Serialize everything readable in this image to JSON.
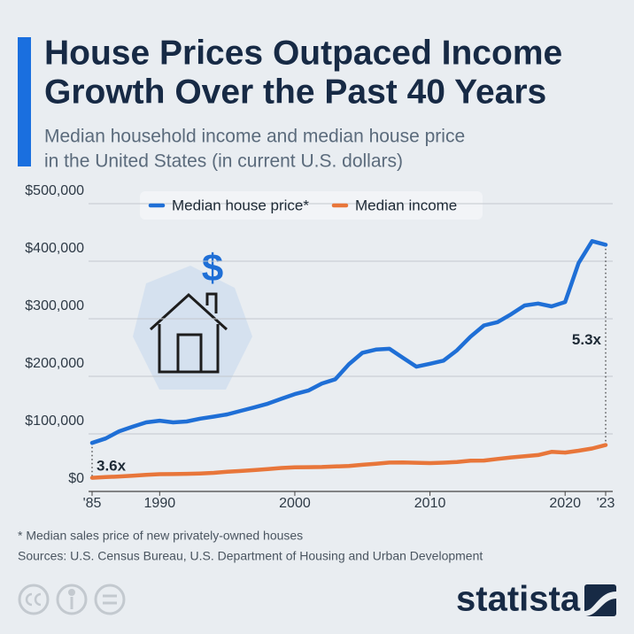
{
  "chart_data": {
    "type": "line",
    "title_lines": [
      "House Prices Outpaced Income",
      "Growth Over the Past 40 Years"
    ],
    "subtitle_lines": [
      "Median household income and median house price",
      "in the United States (in current U.S. dollars)"
    ],
    "x": [
      1985,
      1986,
      1987,
      1988,
      1989,
      1990,
      1991,
      1992,
      1993,
      1994,
      1995,
      1996,
      1997,
      1998,
      1999,
      2000,
      2001,
      2002,
      2003,
      2004,
      2005,
      2006,
      2007,
      2008,
      2009,
      2010,
      2011,
      2012,
      2013,
      2014,
      2015,
      2016,
      2017,
      2018,
      2019,
      2020,
      2021,
      2022,
      2023
    ],
    "series": [
      {
        "name": "Median house price*",
        "color": "#1f6fd6",
        "values": [
          84300,
          92000,
          104500,
          112500,
          120000,
          122900,
          120000,
          121500,
          126500,
          130000,
          133900,
          140000,
          146000,
          152500,
          161000,
          169000,
          175200,
          187600,
          195000,
          221000,
          240900,
          246500,
          247900,
          232100,
          216700,
          221800,
          227200,
          245200,
          268900,
          288500,
          294200,
          307800,
          323100,
          326400,
          321500,
          329000,
          397100,
          435000,
          428600
        ]
      },
      {
        "name": "Median income",
        "color": "#e8763a",
        "values": [
          23620,
          24900,
          26060,
          27230,
          28910,
          29940,
          30130,
          30640,
          31240,
          32260,
          34080,
          35490,
          37010,
          38890,
          40700,
          41990,
          42230,
          42410,
          43320,
          44330,
          46330,
          48200,
          50230,
          50300,
          49780,
          49280,
          50050,
          51020,
          53590,
          53660,
          56520,
          59040,
          61140,
          63180,
          68700,
          67520,
          70780,
          74580,
          80610
        ]
      }
    ],
    "xlim": [
      1985,
      2023
    ],
    "xticks": [
      {
        "value": 1985,
        "label": "'85"
      },
      1990,
      2000,
      2010,
      2020,
      {
        "value": 2023,
        "label": "'23"
      }
    ],
    "ylim": [
      0,
      500000
    ],
    "yticks": [
      {
        "value": 0,
        "label": "$0"
      },
      {
        "value": 100000,
        "label": "$100,000"
      },
      {
        "value": 200000,
        "label": "$200,000"
      },
      {
        "value": 300000,
        "label": "$300,000"
      },
      {
        "value": 400000,
        "label": "$400,000"
      },
      {
        "value": 500000,
        "label": "$500,000"
      }
    ],
    "grid": true,
    "annotations": [
      "3.6x",
      "5.3x"
    ],
    "footnote": "* Median sales price of new privately-owned houses",
    "sources": "Sources: U.S. Census Bureau, U.S. Department of Housing and Urban Development",
    "logo": "statista"
  }
}
